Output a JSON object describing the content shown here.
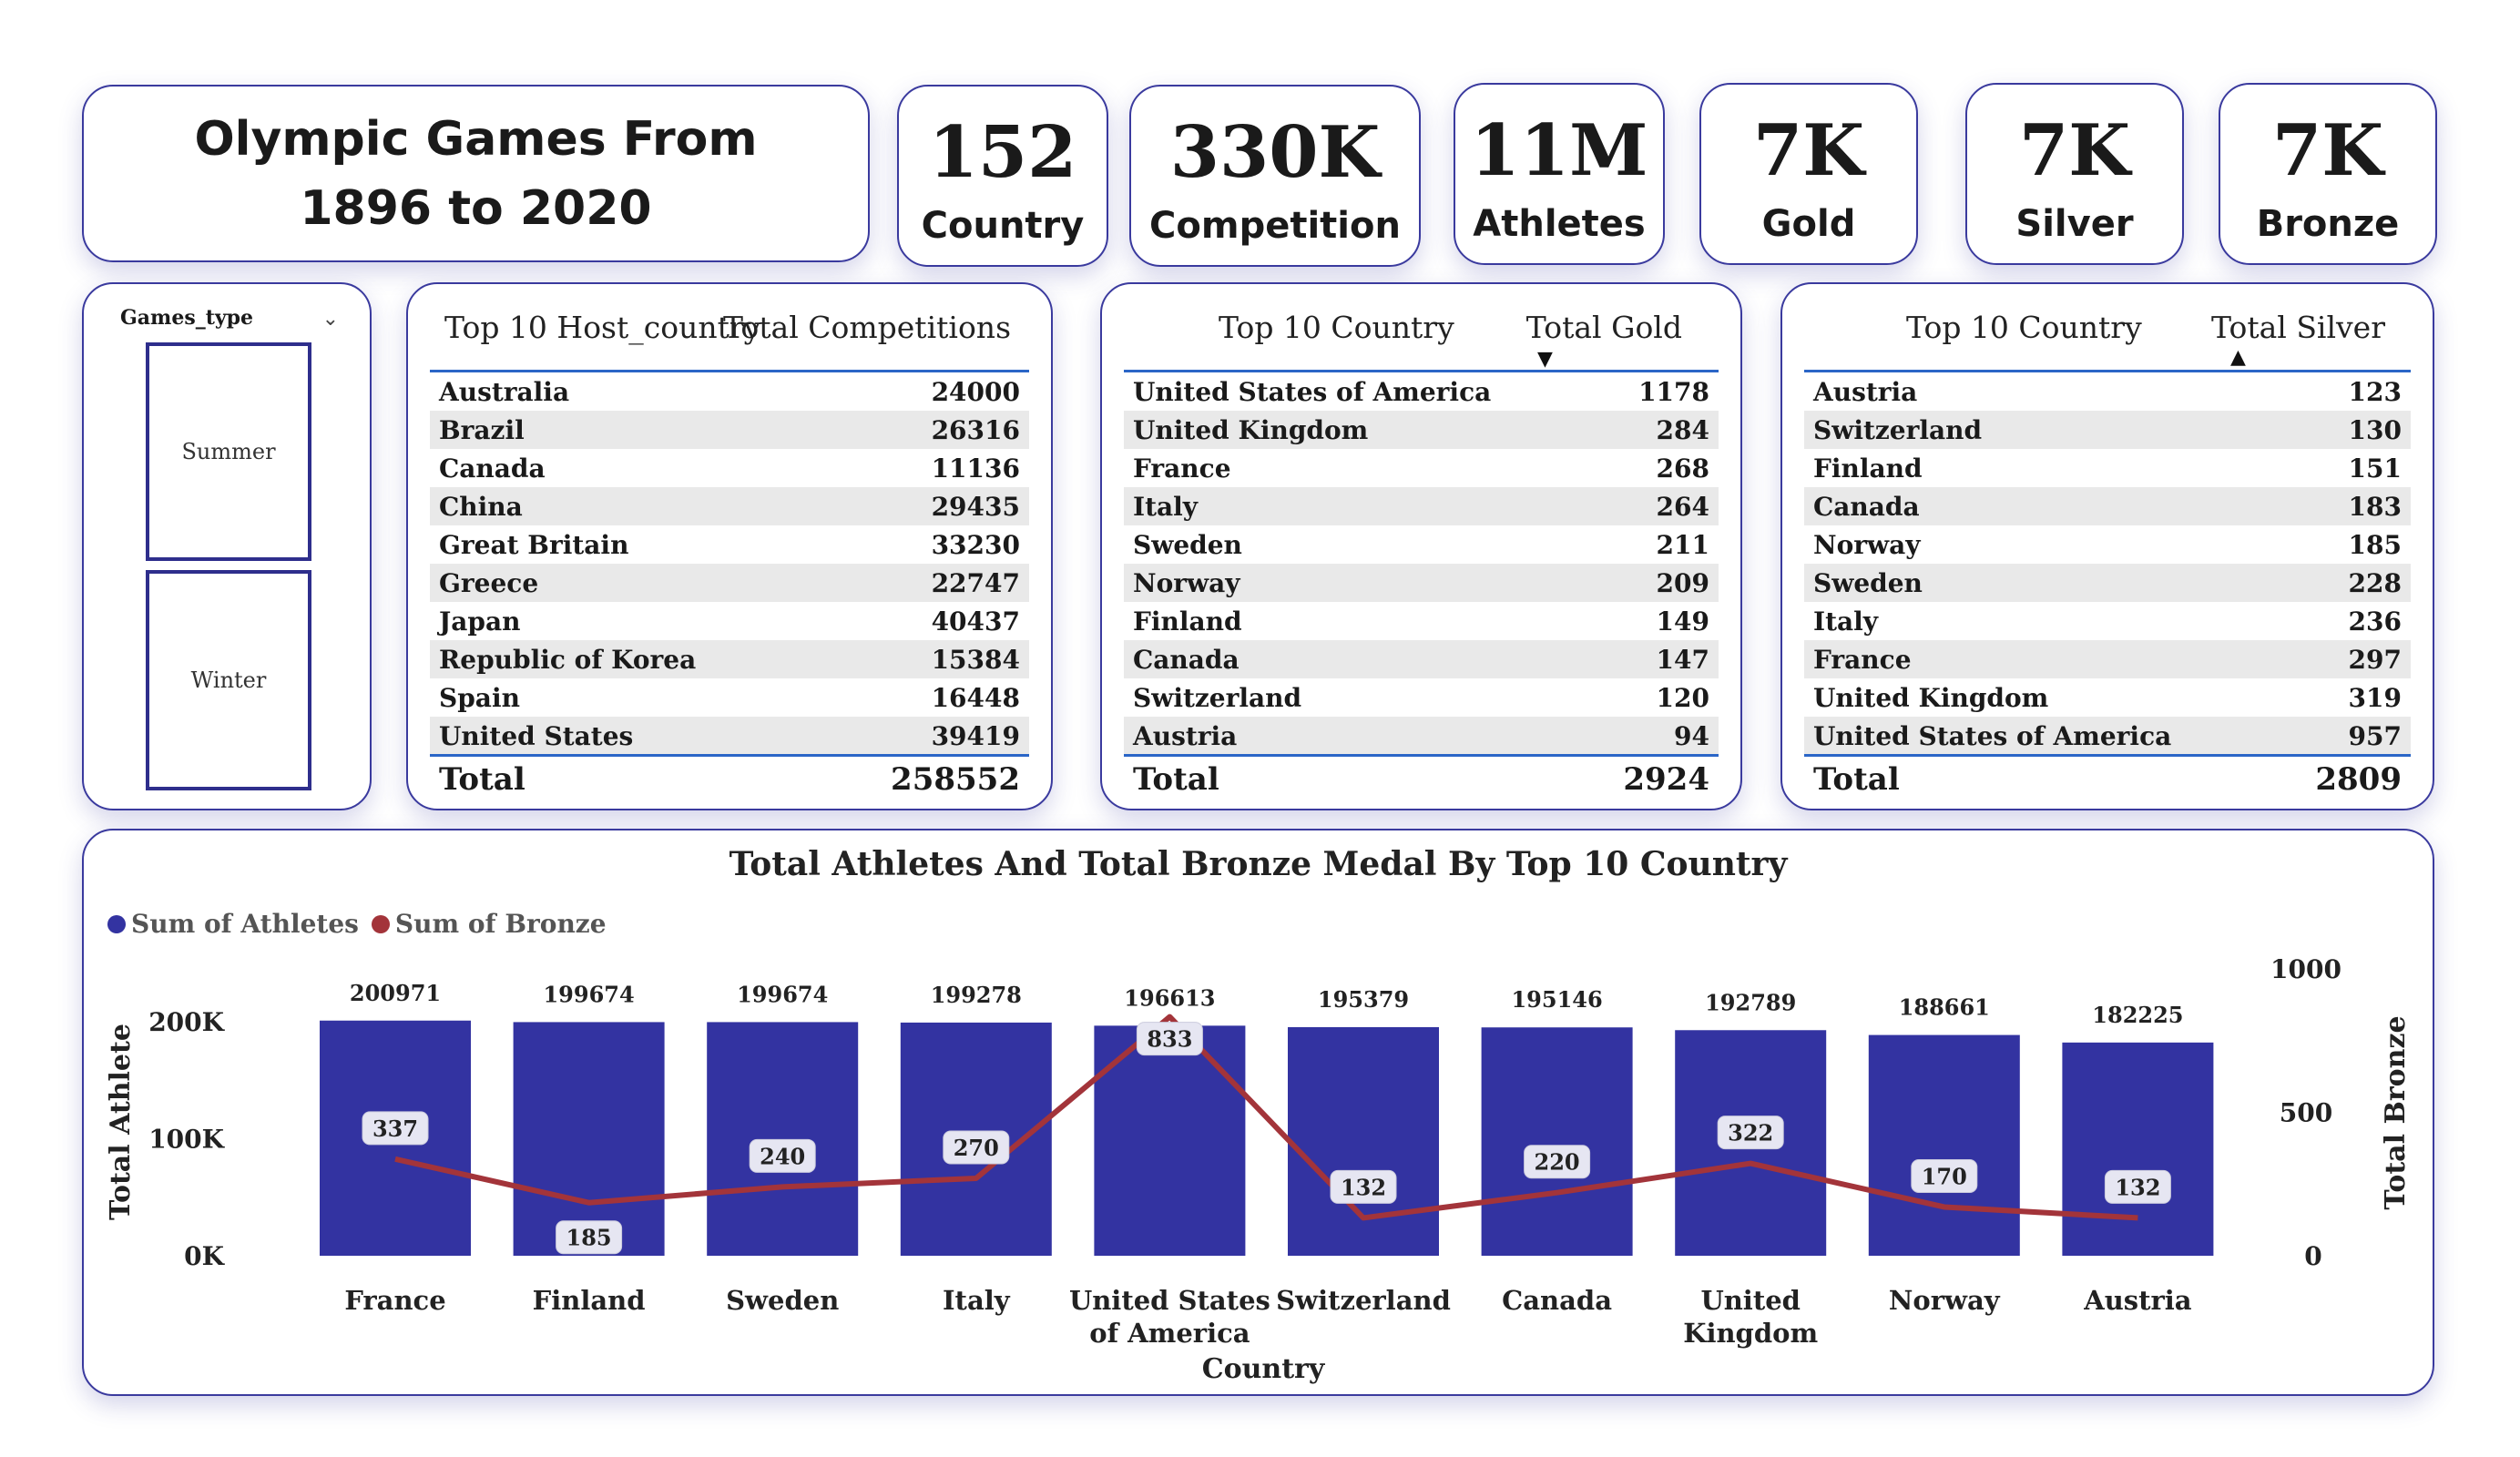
{
  "header": {
    "title_line1": "Olympic Games From",
    "title_line2": "1896 to 2020"
  },
  "kpis": [
    {
      "value": "152",
      "label": "Country"
    },
    {
      "value": "330K",
      "label": "Competition"
    },
    {
      "value": "11M",
      "label": "Athletes"
    },
    {
      "value": "7K",
      "label": "Gold"
    },
    {
      "value": "7K",
      "label": "Silver"
    },
    {
      "value": "7K",
      "label": "Bronze"
    }
  ],
  "slicer": {
    "title": "Games_type",
    "options": [
      "Summer",
      "Winter"
    ]
  },
  "table_hosts": {
    "col1": "Top 10 Host_country",
    "col2": "Total Competitions",
    "rows": [
      {
        "name": "Australia",
        "value": "24000"
      },
      {
        "name": "Brazil",
        "value": "26316"
      },
      {
        "name": "Canada",
        "value": "11136"
      },
      {
        "name": "China",
        "value": "29435"
      },
      {
        "name": "Great Britain",
        "value": "33230"
      },
      {
        "name": "Greece",
        "value": "22747"
      },
      {
        "name": "Japan",
        "value": "40437"
      },
      {
        "name": "Republic of Korea",
        "value": "15384"
      },
      {
        "name": "Spain",
        "value": "16448"
      },
      {
        "name": "United States",
        "value": "39419"
      }
    ],
    "total_label": "Total",
    "total_value": "258552"
  },
  "table_gold": {
    "col1": "Top 10 Country",
    "col2": "Total Gold",
    "sort": "descending",
    "rows": [
      {
        "name": "United States of America",
        "value": "1178"
      },
      {
        "name": "United Kingdom",
        "value": "284"
      },
      {
        "name": "France",
        "value": "268"
      },
      {
        "name": "Italy",
        "value": "264"
      },
      {
        "name": "Sweden",
        "value": "211"
      },
      {
        "name": "Norway",
        "value": "209"
      },
      {
        "name": "Finland",
        "value": "149"
      },
      {
        "name": "Canada",
        "value": "147"
      },
      {
        "name": "Switzerland",
        "value": "120"
      },
      {
        "name": "Austria",
        "value": "94"
      }
    ],
    "total_label": "Total",
    "total_value": "2924"
  },
  "table_silver": {
    "col1": "Top 10 Country",
    "col2": "Total Silver",
    "sort": "ascending",
    "rows": [
      {
        "name": "Austria",
        "value": "123"
      },
      {
        "name": "Switzerland",
        "value": "130"
      },
      {
        "name": "Finland",
        "value": "151"
      },
      {
        "name": "Canada",
        "value": "183"
      },
      {
        "name": "Norway",
        "value": "185"
      },
      {
        "name": "Sweden",
        "value": "228"
      },
      {
        "name": "Italy",
        "value": "236"
      },
      {
        "name": "France",
        "value": "297"
      },
      {
        "name": "United Kingdom",
        "value": "319"
      },
      {
        "name": "United States of America",
        "value": "957"
      }
    ],
    "total_label": "Total",
    "total_value": "2809"
  },
  "colors": {
    "bar": "#3333a1",
    "line": "#a3343a",
    "border": "#3a3a9e"
  },
  "chart_data": {
    "type": "bar",
    "title": "Total Athletes And Total Bronze Medal By Top 10 Country",
    "xlabel": "Country",
    "ylabel": "Total Athlete",
    "y2label": "Total Bronze",
    "legend_position": "top-left",
    "categories": [
      [
        "France"
      ],
      [
        "Finland"
      ],
      [
        "Sweden"
      ],
      [
        "Italy"
      ],
      [
        "United States",
        "of America"
      ],
      [
        "Switzerland"
      ],
      [
        "Canada"
      ],
      [
        "United",
        "Kingdom"
      ],
      [
        "Norway"
      ],
      [
        "Austria"
      ]
    ],
    "series": [
      {
        "name": "Sum of Athletes",
        "type": "bar",
        "axis": "left",
        "values": [
          200971,
          199674,
          199674,
          199278,
          196613,
          195379,
          195146,
          192789,
          188661,
          182225
        ]
      },
      {
        "name": "Sum of Bronze",
        "type": "line",
        "axis": "right",
        "values": [
          337,
          185,
          240,
          270,
          833,
          132,
          220,
          322,
          170,
          132
        ]
      }
    ],
    "ylim": [
      0,
      200000
    ],
    "y_ticks": [
      {
        "v": 0,
        "label": "0K"
      },
      {
        "v": 100000,
        "label": "100K"
      },
      {
        "v": 200000,
        "label": "200K"
      }
    ],
    "y2lim": [
      0,
      1000
    ],
    "y2_ticks": [
      {
        "v": 0,
        "label": "0"
      },
      {
        "v": 500,
        "label": "500"
      },
      {
        "v": 1000,
        "label": "1000"
      }
    ]
  }
}
